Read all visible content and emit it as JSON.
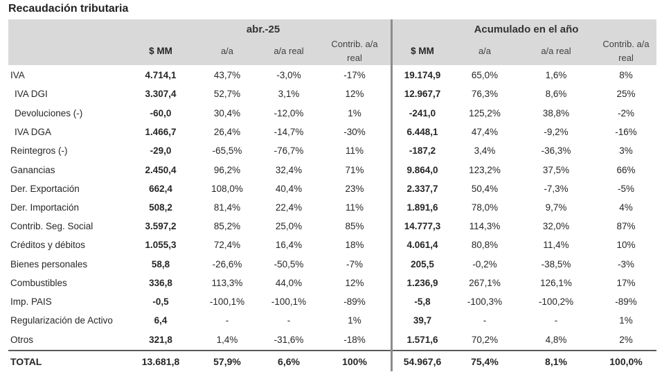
{
  "title": "Recaudación tributaria",
  "groups": {
    "month": "abr.-25",
    "ytd": "Acumulado en el año"
  },
  "columns": [
    "$ MM",
    "a/a",
    "a/a real",
    "Contrib. a/a real",
    "$ MM",
    "a/a",
    "a/a real",
    "Contrib. a/a real"
  ],
  "rows": [
    {
      "label": "IVA",
      "indent": false,
      "values": [
        "4.714,1",
        "43,7%",
        "-3,0%",
        "-17%",
        "19.174,9",
        "65,0%",
        "1,6%",
        "8%"
      ]
    },
    {
      "label": "IVA DGI",
      "indent": true,
      "values": [
        "3.307,4",
        "52,7%",
        "3,1%",
        "12%",
        "12.967,7",
        "76,3%",
        "8,6%",
        "25%"
      ]
    },
    {
      "label": "Devoluciones (-)",
      "indent": true,
      "values": [
        "-60,0",
        "30,4%",
        "-12,0%",
        "1%",
        "-241,0",
        "125,2%",
        "38,8%",
        "-2%"
      ]
    },
    {
      "label": "IVA DGA",
      "indent": true,
      "values": [
        "1.466,7",
        "26,4%",
        "-14,7%",
        "-30%",
        "6.448,1",
        "47,4%",
        "-9,2%",
        "-16%"
      ]
    },
    {
      "label": "Reintegros (-)",
      "indent": false,
      "values": [
        "-29,0",
        "-65,5%",
        "-76,7%",
        "11%",
        "-187,2",
        "3,4%",
        "-36,3%",
        "3%"
      ]
    },
    {
      "label": "Ganancias",
      "indent": false,
      "values": [
        "2.450,4",
        "96,2%",
        "32,4%",
        "71%",
        "9.864,0",
        "123,2%",
        "37,5%",
        "66%"
      ]
    },
    {
      "label": "Der. Exportación",
      "indent": false,
      "values": [
        "662,4",
        "108,0%",
        "40,4%",
        "23%",
        "2.337,7",
        "50,4%",
        "-7,3%",
        "-5%"
      ]
    },
    {
      "label": "Der. Importación",
      "indent": false,
      "values": [
        "508,2",
        "81,4%",
        "22,4%",
        "11%",
        "1.891,6",
        "78,0%",
        "9,7%",
        "4%"
      ]
    },
    {
      "label": "Contrib. Seg. Social",
      "indent": false,
      "values": [
        "3.597,2",
        "85,2%",
        "25,0%",
        "85%",
        "14.777,3",
        "114,3%",
        "32,0%",
        "87%"
      ]
    },
    {
      "label": "Créditos y débitos",
      "indent": false,
      "values": [
        "1.055,3",
        "72,4%",
        "16,4%",
        "18%",
        "4.061,4",
        "80,8%",
        "11,4%",
        "10%"
      ]
    },
    {
      "label": "Bienes personales",
      "indent": false,
      "values": [
        "58,8",
        "-26,6%",
        "-50,5%",
        "-7%",
        "205,5",
        "-0,2%",
        "-38,5%",
        "-3%"
      ]
    },
    {
      "label": "Combustibles",
      "indent": false,
      "values": [
        "336,8",
        "113,3%",
        "44,0%",
        "12%",
        "1.236,9",
        "267,1%",
        "126,1%",
        "17%"
      ]
    },
    {
      "label": "Imp. PAIS",
      "indent": false,
      "values": [
        "-0,5",
        "-100,1%",
        "-100,1%",
        "-89%",
        "-5,8",
        "-100,3%",
        "-100,2%",
        "-89%"
      ]
    },
    {
      "label": "Regularización de Activo",
      "indent": false,
      "values": [
        "6,4",
        "-",
        "-",
        "1%",
        "39,7",
        "-",
        "-",
        "1%"
      ]
    },
    {
      "label": "Otros",
      "indent": false,
      "values": [
        "321,8",
        "1,4%",
        "-31,6%",
        "-18%",
        "1.571,6",
        "70,2%",
        "4,8%",
        "2%"
      ]
    }
  ],
  "total": {
    "label": "TOTAL",
    "values": [
      "13.681,8",
      "57,9%",
      "6,6%",
      "100%",
      "54.967,6",
      "75,4%",
      "8,1%",
      "100,0%"
    ]
  }
}
